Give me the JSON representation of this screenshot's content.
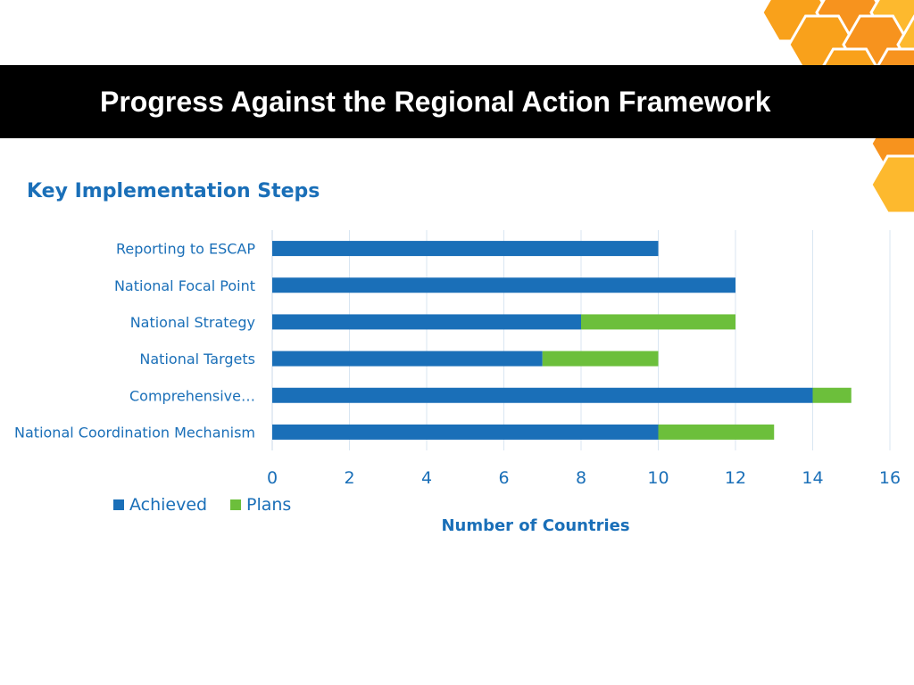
{
  "slide": {
    "title": "Progress Against the Regional Action Framework"
  },
  "colors": {
    "title_bar": "#000000",
    "title_text": "#ffffff",
    "honeycomb": [
      "#f9a11b",
      "#f7931e",
      "#fdb92e"
    ],
    "accent_text": "#1a6fb8"
  },
  "chart_data": {
    "type": "bar",
    "orientation": "horizontal",
    "stacked": true,
    "title": "Key Implementation Steps",
    "xlabel": "Number of Countries",
    "ylabel": "",
    "categories": [
      "Reporting to ESCAP",
      "National Focal Point",
      "National Strategy",
      "National Targets",
      "Comprehensive…",
      "National Coordination Mechanism"
    ],
    "series": [
      {
        "name": "Achieved",
        "color": "#1a6fb8",
        "values": [
          10,
          12,
          8,
          7,
          14,
          10
        ]
      },
      {
        "name": "Plans",
        "color": "#6cbf3b",
        "values": [
          0,
          0,
          4,
          3,
          1,
          3
        ]
      }
    ],
    "xlim": [
      0,
      16
    ],
    "xticks": [
      0,
      2,
      4,
      6,
      8,
      10,
      12,
      14,
      16
    ],
    "grid": true,
    "legend_position": "bottom-left"
  }
}
